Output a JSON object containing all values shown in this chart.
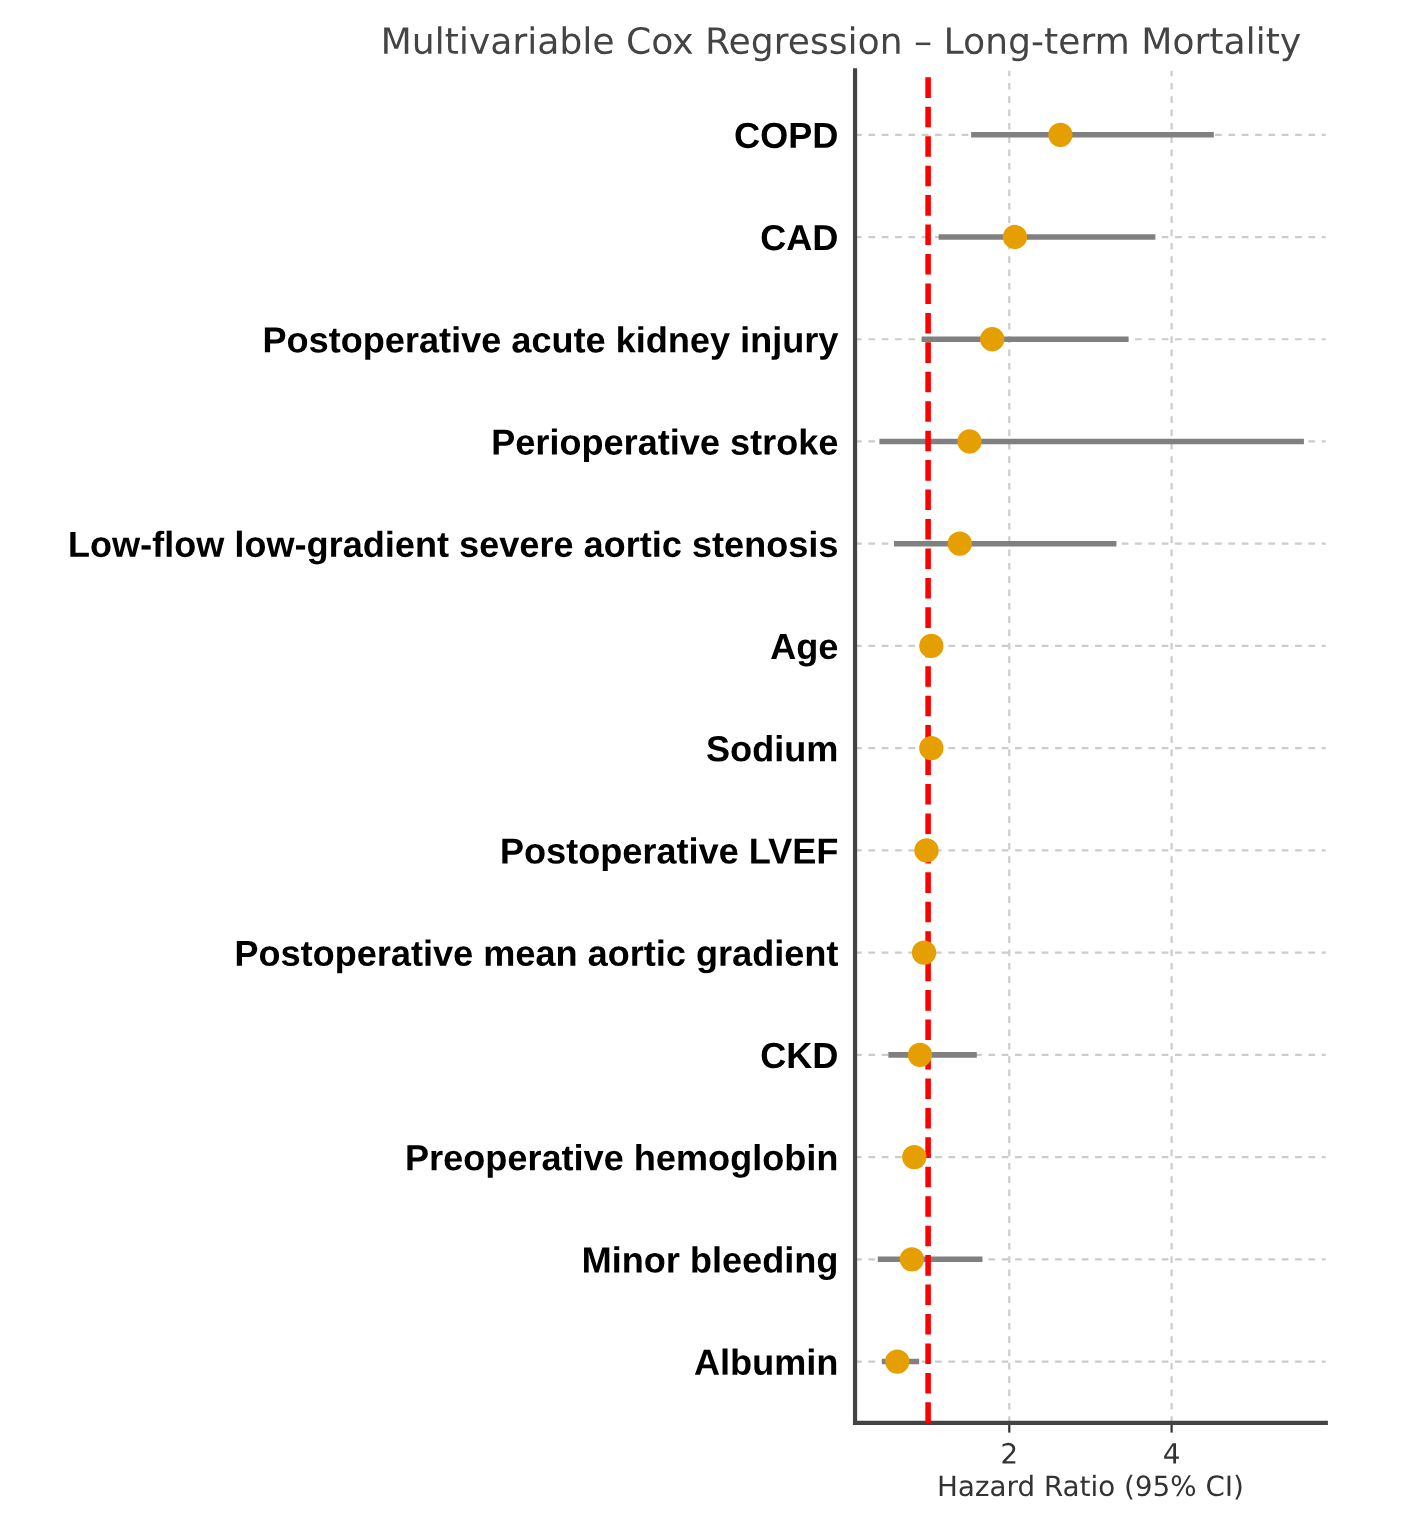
{
  "chart_data": {
    "type": "scatter",
    "orientation": "horizontal",
    "title": "Multivariable Cox Regression – Long-term Mortality",
    "xlabel": "Hazard Ratio (95% CI)",
    "categories": [
      "COPD",
      "CAD",
      "Postoperative acute kidney injury",
      "Perioperative stroke",
      "Low-flow low-gradient severe aortic stenosis",
      "Age",
      "Sodium",
      "Postoperative LVEF",
      "Postoperative mean aortic gradient",
      "CKD",
      "Preoperative hemoglobin",
      "Minor bleeding",
      "Albumin"
    ],
    "series": [
      {
        "color": "#e69f00",
        "values": [
          2.63,
          2.07,
          1.79,
          1.51,
          1.39,
          1.04,
          1.04,
          0.98,
          0.95,
          0.9,
          0.83,
          0.8,
          0.62
        ],
        "errors": [
          [
            1.53,
            4.52
          ],
          [
            1.13,
            3.8
          ],
          [
            0.92,
            3.47
          ],
          [
            0.4,
            5.63
          ],
          [
            0.58,
            3.32
          ],
          null,
          null,
          null,
          null,
          [
            0.51,
            1.6
          ],
          null,
          [
            0.38,
            1.67
          ],
          [
            0.43,
            0.89
          ]
        ]
      }
    ],
    "xlim": [
      0.1,
      5.9
    ],
    "xticks": [
      2,
      4
    ],
    "grid": true,
    "marker": "circle",
    "ref_lines": [
      {
        "axis": "x",
        "value": 1,
        "color": "#ff0000",
        "line_style": "dashed"
      }
    ]
  }
}
